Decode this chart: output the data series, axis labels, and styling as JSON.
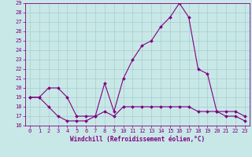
{
  "xlabel": "Windchill (Refroidissement éolien,°C)",
  "bg_color": "#c8e8e8",
  "grid_color": "#aacccc",
  "line_color": "#800080",
  "spine_color": "#800080",
  "xlim": [
    -0.5,
    23.5
  ],
  "ylim": [
    16,
    29
  ],
  "xticks": [
    0,
    1,
    2,
    3,
    4,
    5,
    6,
    7,
    8,
    9,
    10,
    11,
    12,
    13,
    14,
    15,
    16,
    17,
    18,
    19,
    20,
    21,
    22,
    23
  ],
  "yticks": [
    16,
    17,
    18,
    19,
    20,
    21,
    22,
    23,
    24,
    25,
    26,
    27,
    28,
    29
  ],
  "line1_x": [
    0,
    1,
    2,
    3,
    4,
    5,
    6,
    7,
    8,
    9,
    10,
    11,
    12,
    13,
    14,
    15,
    16,
    17,
    18,
    19,
    20,
    21,
    22,
    23
  ],
  "line1_y": [
    19,
    19,
    20,
    20,
    19,
    17,
    17,
    17,
    20.5,
    17.5,
    21,
    23,
    24.5,
    25,
    26.5,
    27.5,
    29,
    27.5,
    22,
    21.5,
    17.5,
    17.5,
    17.5,
    17
  ],
  "line2_x": [
    0,
    1,
    2,
    3,
    4,
    5,
    6,
    7,
    8,
    9,
    10,
    11,
    12,
    13,
    14,
    15,
    16,
    17,
    18,
    19,
    20,
    21,
    22,
    23
  ],
  "line2_y": [
    19,
    19,
    18,
    17,
    16.5,
    16.5,
    16.5,
    17,
    17.5,
    17,
    18,
    18,
    18,
    18,
    18,
    18,
    18,
    18,
    17.5,
    17.5,
    17.5,
    17,
    17,
    16.5
  ],
  "tick_fontsize": 5.0,
  "xlabel_fontsize": 5.5,
  "marker_size": 2.0
}
